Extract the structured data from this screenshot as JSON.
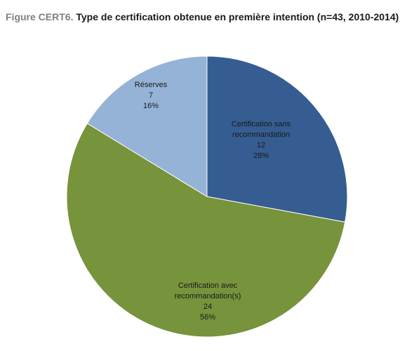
{
  "title": {
    "prefix": "Figure CERT6.",
    "text": "Type de certification obtenue en première intention (n=43, 2010-2014)"
  },
  "chart_data": {
    "type": "pie",
    "title": "Type de certification obtenue en première intention (n=43, 2010-2014)",
    "total": 43,
    "start_angle_deg": 0,
    "direction": "clockwise",
    "slices": [
      {
        "lines": [
          "Certification sans",
          "recommandation"
        ],
        "value": 12,
        "percent": "28%",
        "color": "#355d91"
      },
      {
        "lines": [
          "Certification avec",
          "recommandation(s)"
        ],
        "value": 24,
        "percent": "56%",
        "color": "#77933c"
      },
      {
        "lines": [
          "Réserves"
        ],
        "value": 7,
        "percent": "16%",
        "color": "#95b3d7"
      }
    ]
  }
}
